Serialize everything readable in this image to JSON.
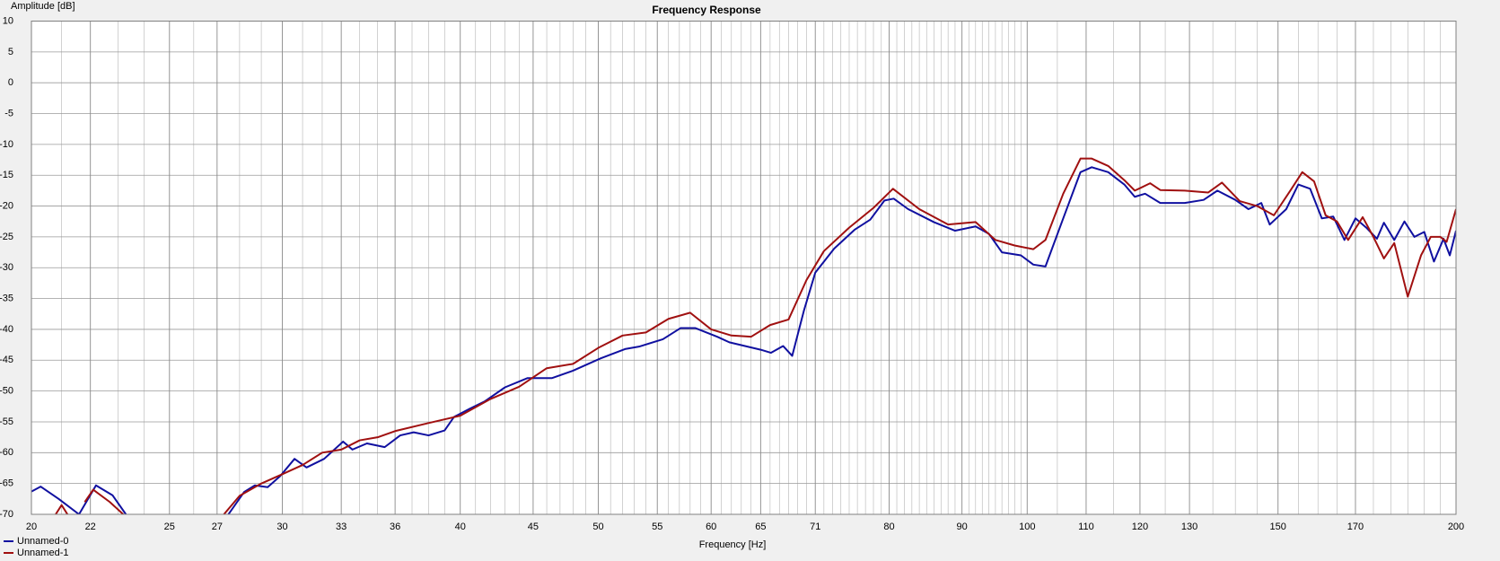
{
  "chart_data": {
    "type": "line",
    "title": "Frequency Response",
    "y_label": "Amplitude [dB]",
    "x_label": "Frequency [Hz]",
    "log_x": true,
    "grid": true,
    "minor_grid": true,
    "legend": "bottom-left",
    "xlim": [
      20,
      200
    ],
    "xticks": [
      20,
      22,
      25,
      27,
      30,
      33,
      36,
      40,
      45,
      50,
      55,
      60,
      65,
      71,
      80,
      90,
      100,
      110,
      120,
      130,
      150,
      170,
      200
    ],
    "ylim": [
      -70,
      10
    ],
    "yticks": [
      10,
      5,
      0,
      -5,
      -10,
      -15,
      -20,
      -25,
      -30,
      -35,
      -40,
      -45,
      -50,
      -55,
      -60,
      -65,
      -70
    ],
    "series": [
      {
        "name": "Unnamed-0",
        "color": "#1010a0",
        "x": [
          20,
          20.3,
          20.9,
          21.6,
          22.2,
          22.8,
          23.3,
          25,
          27.5,
          28.2,
          28.7,
          29.3,
          29.9,
          30.6,
          31.2,
          32.1,
          33.1,
          33.6,
          34.4,
          35.4,
          36.3,
          37.1,
          38,
          39,
          39.6,
          40.6,
          41.6,
          43,
          44.6,
          46.4,
          48,
          50.2,
          52.2,
          53.4,
          55.5,
          57.1,
          58.5,
          60.6,
          61.8,
          65,
          66.1,
          67.4,
          68.4,
          69.7,
          71,
          73.2,
          75.7,
          77.6,
          79.4,
          80.6,
          82.5,
          86,
          89,
          92,
          94,
          96,
          99,
          101,
          103,
          106,
          109,
          111,
          114,
          117,
          119,
          121,
          124,
          129,
          133,
          136,
          140,
          143,
          146,
          148,
          152,
          155,
          158,
          161,
          164,
          167,
          170,
          173,
          176,
          178,
          181,
          184,
          187,
          190,
          193,
          196,
          198,
          200
        ],
        "values": [
          -66.3,
          -65.5,
          -67.5,
          -70,
          -65.3,
          -66.9,
          -70,
          null,
          -70,
          -66.4,
          -65.3,
          -65.6,
          -63.8,
          -61,
          -62.4,
          -61,
          -58.2,
          -59.5,
          -58.5,
          -59.1,
          -57.2,
          -56.7,
          -57.2,
          -56.4,
          -54.2,
          -52.9,
          -51.7,
          -49.4,
          -47.9,
          -47.9,
          -46.7,
          -44.7,
          -43.2,
          -42.8,
          -41.6,
          -39.8,
          -39.8,
          -41.2,
          -42.1,
          -43.3,
          -43.8,
          -42.7,
          -44.3,
          -37,
          -30.8,
          -26.9,
          -23.8,
          -22.2,
          -19.1,
          -18.8,
          -20.5,
          -22.6,
          -24,
          -23.3,
          -24.5,
          -27.5,
          -28,
          -29.5,
          -29.8,
          -22,
          -14.5,
          -13.7,
          -14.5,
          -16.5,
          -18.5,
          -18,
          -19.5,
          -19.5,
          -19,
          -17.5,
          -19,
          -20.5,
          -19.5,
          -23,
          -20.5,
          -16.5,
          -17.2,
          -22,
          -21.7,
          -25.5,
          -22,
          -23.5,
          -25.3,
          -22.7,
          -25.5,
          -22.5,
          -25,
          -24.2,
          -29,
          -25.3,
          -28,
          -24
        ]
      },
      {
        "name": "Unnamed-1",
        "color": "#a01010",
        "x": [
          20.8,
          21.0,
          21.2,
          21.5,
          21.8,
          22.1,
          22.7,
          23.2,
          25,
          27.3,
          28,
          29,
          30,
          31,
          32,
          33,
          34,
          35,
          36,
          38,
          40,
          42,
          44,
          46,
          48,
          50,
          52,
          54,
          56,
          58,
          60,
          62,
          64,
          66,
          68,
          70,
          72,
          75,
          78,
          80.5,
          84,
          88,
          92,
          95,
          98,
          101,
          103,
          106,
          109,
          111,
          114,
          117,
          119,
          122,
          124,
          129,
          134,
          137,
          141,
          145,
          149,
          153,
          156,
          159,
          162,
          165,
          168,
          172,
          175,
          178,
          181,
          185,
          189,
          192,
          195,
          197,
          200
        ],
        "values": [
          -70,
          -68.5,
          -70,
          null,
          -68,
          -66,
          -68,
          -70,
          null,
          -70,
          -67,
          -65,
          -63.5,
          -62,
          -60,
          -59.5,
          -58,
          -57.5,
          -56.5,
          -55.2,
          -54,
          -51.3,
          -49.3,
          -46.3,
          -45.6,
          -43,
          -41,
          -40.5,
          -38.3,
          -37.3,
          -40,
          -41,
          -41.2,
          -39.3,
          -38.4,
          -32,
          -27.3,
          -23.5,
          -20.3,
          -17.2,
          -20.5,
          -23,
          -22.6,
          -25.5,
          -26.4,
          -27,
          -25.5,
          -18,
          -12.3,
          -12.3,
          -13.5,
          -15.8,
          -17.5,
          -16.3,
          -17.4,
          -17.5,
          -17.8,
          -16.2,
          -19.2,
          -20,
          -21.5,
          -17.5,
          -14.5,
          -16,
          -21.5,
          -22.5,
          -25.5,
          -21.8,
          -25,
          -28.5,
          -26,
          -34.7,
          -28,
          -25,
          -25,
          -25.8,
          -20.5
        ]
      }
    ]
  }
}
